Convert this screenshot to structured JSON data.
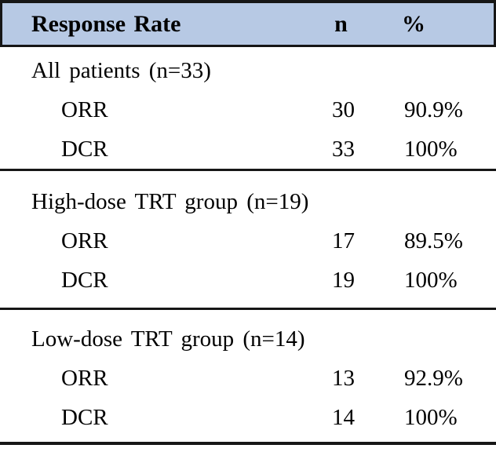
{
  "colors": {
    "header_bg": "#b7c9e4",
    "rule": "#161616",
    "text": "#000000"
  },
  "table": {
    "header": {
      "response_rate": "Response Rate",
      "n": "n",
      "percent": "%"
    },
    "sections": [
      {
        "group": "All patients (n=33)",
        "rows": [
          {
            "label": "ORR",
            "n": "30",
            "pct": "90.9%"
          },
          {
            "label": "DCR",
            "n": "33",
            "pct": "100%"
          }
        ]
      },
      {
        "group": "High-dose TRT group (n=19)",
        "rows": [
          {
            "label": "ORR",
            "n": "17",
            "pct": "89.5%"
          },
          {
            "label": "DCR",
            "n": "19",
            "pct": "100%"
          }
        ]
      },
      {
        "group": "Low-dose TRT group (n=14)",
        "rows": [
          {
            "label": "ORR",
            "n": "13",
            "pct": "92.9%"
          },
          {
            "label": "DCR",
            "n": "14",
            "pct": "100%"
          }
        ]
      }
    ]
  },
  "chart_data": {
    "type": "table",
    "title": "Response Rate",
    "columns": [
      "Response Rate",
      "n",
      "%"
    ],
    "rows": [
      [
        "All patients (n=33)",
        "",
        ""
      ],
      [
        "ORR",
        30,
        "90.9%"
      ],
      [
        "DCR",
        33,
        "100%"
      ],
      [
        "High-dose TRT group (n=19)",
        "",
        ""
      ],
      [
        "ORR",
        17,
        "89.5%"
      ],
      [
        "DCR",
        19,
        "100%"
      ],
      [
        "Low-dose TRT group (n=14)",
        "",
        ""
      ],
      [
        "ORR",
        13,
        "92.9%"
      ],
      [
        "DCR",
        14,
        "100%"
      ]
    ]
  }
}
